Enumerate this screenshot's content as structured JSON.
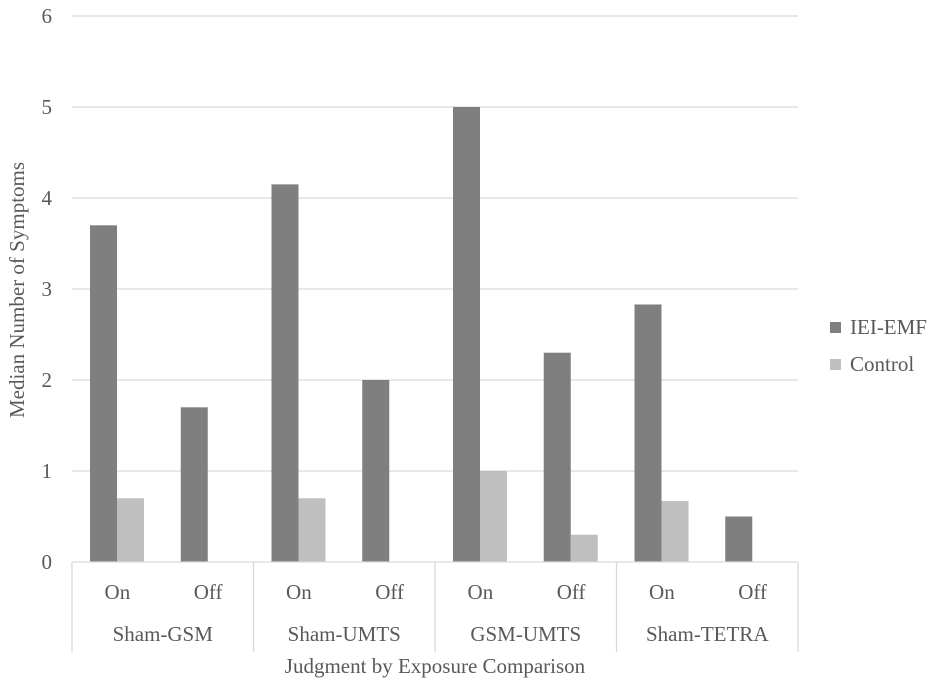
{
  "chart_data": {
    "type": "bar",
    "xlabel": "Judgment by Exposure Comparison",
    "ylabel": "Median Number of Symptoms",
    "ylim": [
      0,
      6
    ],
    "yticks": [
      0,
      1,
      2,
      3,
      4,
      5,
      6
    ],
    "grid": true,
    "legend_position": "right",
    "groups": [
      {
        "label": "Sham-GSM",
        "subcategories": [
          "On",
          "Off"
        ]
      },
      {
        "label": "Sham-UMTS",
        "subcategories": [
          "On",
          "Off"
        ]
      },
      {
        "label": "GSM-UMTS",
        "subcategories": [
          "On",
          "Off"
        ]
      },
      {
        "label": "Sham-TETRA",
        "subcategories": [
          "On",
          "Off"
        ]
      }
    ],
    "series": [
      {
        "name": "IEI-EMF",
        "color": "#7f7f7f",
        "values": [
          3.7,
          1.7,
          4.15,
          2.0,
          5.0,
          2.3,
          2.83,
          0.5
        ]
      },
      {
        "name": "Control",
        "color": "#bfbfbf",
        "values": [
          0.7,
          0,
          0.7,
          0,
          1.0,
          0.3,
          0.67,
          0
        ]
      }
    ]
  }
}
